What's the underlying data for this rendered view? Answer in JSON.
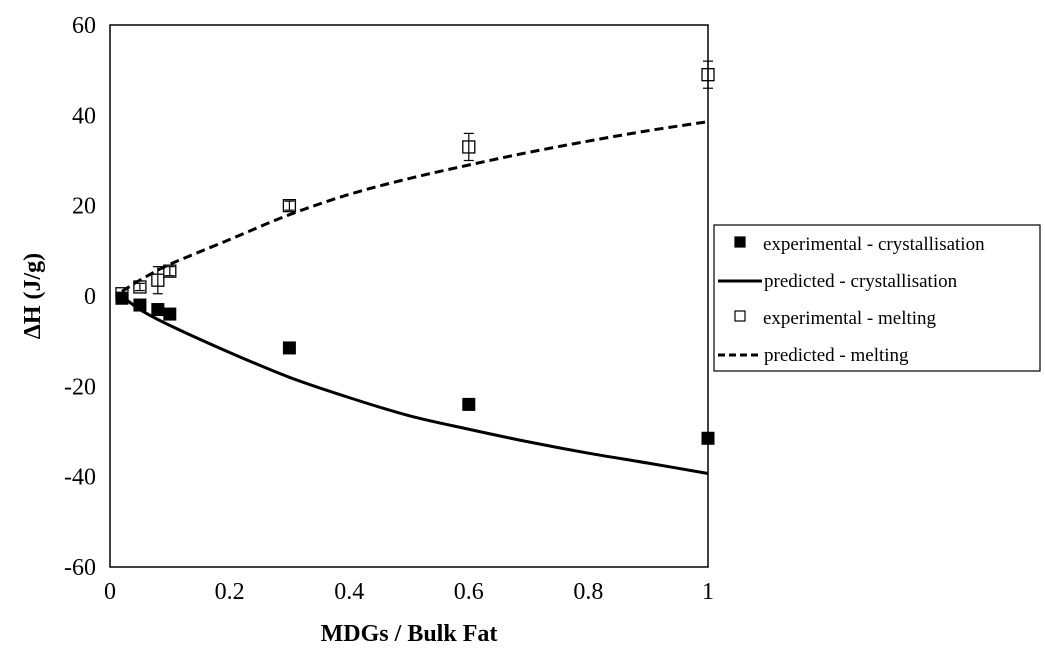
{
  "chart_data": {
    "type": "scatter",
    "title": "",
    "xlabel": "MDGs / Bulk Fat",
    "ylabel": "ΔH (J/g)",
    "xlim": [
      0,
      1
    ],
    "ylim": [
      -60,
      60
    ],
    "x_ticks": [
      0,
      0.2,
      0.4,
      0.6,
      0.8,
      1
    ],
    "x_tick_labels": [
      "0",
      "0.2",
      "0.4",
      "0.6",
      "0.8",
      "1"
    ],
    "y_ticks": [
      60,
      40,
      20,
      0,
      -20,
      -40,
      -60
    ],
    "y_tick_labels": [
      "60",
      "40",
      "20",
      "0",
      "-20",
      "-40",
      "-60"
    ],
    "grid": false,
    "legend_position": "right",
    "series": [
      {
        "name": "experimental - crystallisation",
        "kind": "markers",
        "marker": "filled-square",
        "x": [
          0.02,
          0.05,
          0.08,
          0.1,
          0.3,
          0.6,
          1.0
        ],
        "y": [
          -0.5,
          -2,
          -3,
          -4,
          -11.5,
          -24,
          -31.5
        ]
      },
      {
        "name": "predicted - crystallisation",
        "kind": "line",
        "style": "solid",
        "x": [
          0.02,
          0.05,
          0.1,
          0.2,
          0.3,
          0.4,
          0.5,
          0.6,
          0.7,
          0.8,
          0.9,
          1.0
        ],
        "y": [
          0,
          -3,
          -6.5,
          -12.5,
          -18,
          -22.5,
          -26.5,
          -29.5,
          -32.3,
          -34.8,
          -37,
          -39.3
        ]
      },
      {
        "name": "experimental - melting",
        "kind": "markers",
        "marker": "open-square",
        "x": [
          0.02,
          0.05,
          0.08,
          0.1,
          0.3,
          0.6,
          1.0
        ],
        "y": [
          0.5,
          2,
          3.5,
          5.5,
          20,
          33,
          49
        ],
        "y_err": [
          0.3,
          0.8,
          3,
          1,
          1,
          3,
          3
        ]
      },
      {
        "name": "predicted - melting",
        "kind": "line",
        "style": "dashed",
        "x": [
          0.02,
          0.05,
          0.1,
          0.2,
          0.3,
          0.4,
          0.5,
          0.6,
          0.7,
          0.8,
          0.9,
          1.0
        ],
        "y": [
          1,
          3.5,
          7,
          12.5,
          18,
          22.5,
          26,
          29,
          31.8,
          34.3,
          36.6,
          38.6
        ]
      }
    ]
  }
}
